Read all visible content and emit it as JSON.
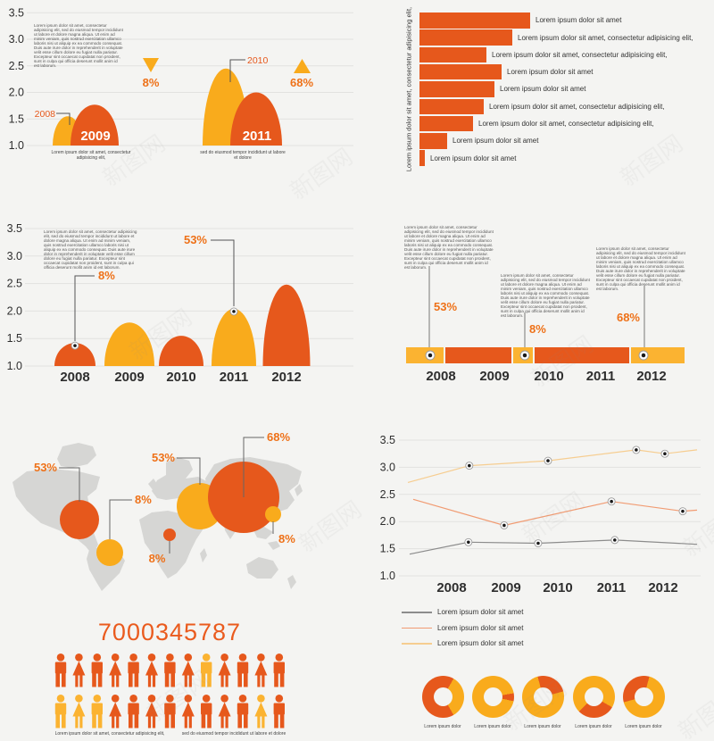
{
  "watermark": {
    "text": "新图网"
  },
  "colors": {
    "orange": "#E6581C",
    "yellow": "#F9AB1C",
    "yellow_bright": "#FBB331",
    "accent_text": "#EE7118",
    "salmon": "#F19B72",
    "gold": "#F6CD90",
    "gray_line": "#8C8C8C",
    "map_gray": "#D6D6D4",
    "number_orange": "#EA5B1E",
    "grid": "#E2E2E0",
    "dark_text": "#2E2E2E"
  },
  "lorem": {
    "paragraph": "Lorem ipsum dolor sit amet, consectetur adipisicing elit, sed do eiusmod tempor incididunt ut labore et dolore magna aliqua. Ut enim ad minim veniam, quis nostrud exercitation ullamco laboris nisi ut aliquip ex ea commodo consequat. Duis aute irure dolor in reprehenderit in voluptate velit esse cillum dolore eu fugiat nulla pariatur. Excepteur sint occaecat cupidatat non proident, sunt in culpa qui officia deserunt mollit anim id est laborum.",
    "caption_a": "Lorem ipsum dolor sit amet, consectetur adipisicing elit,",
    "caption_b": "sed do eiusmod tempor incididunt ut labore et dolore",
    "short_label": "Lorem ipsum dolor sit amet",
    "donut_caption": "Lorem ipsum dolor"
  },
  "chart_data": [
    {
      "id": "dome-pairs",
      "type": "area",
      "ylim": [
        1.0,
        3.5
      ],
      "y_ticks": [
        "3.5",
        "3.0",
        "2.5",
        "2.0",
        "1.5",
        "1.0"
      ],
      "domes": [
        {
          "year": "2008",
          "value": 1.55,
          "color": "yellow",
          "cx": 76,
          "w": 34,
          "callout": "2008"
        },
        {
          "year": "2009",
          "value": 1.77,
          "color": "orange",
          "cx": 106,
          "w": 54,
          "label": "2009"
        },
        {
          "year": "2010",
          "value": 2.45,
          "color": "yellow",
          "cx": 253,
          "w": 52,
          "callout": "2010"
        },
        {
          "year": "2011",
          "value": 2.0,
          "color": "orange",
          "cx": 287,
          "w": 58,
          "label": "2011"
        }
      ],
      "annotations": [
        {
          "shape": "triangle-down",
          "text": "8%"
        },
        {
          "shape": "triangle-up",
          "text": "68%"
        }
      ]
    },
    {
      "id": "hbar",
      "type": "bar",
      "orientation": "horizontal",
      "axis_label": "Lorem ipsum dolor sit amet, consectetur adipisicing elit,",
      "bars": [
        {
          "w": 124,
          "label": "Lorem ipsum dolor sit amet"
        },
        {
          "w": 104,
          "label": "Lorem ipsum dolor sit amet, consectetur adipisicing elit,"
        },
        {
          "w": 75,
          "label": "Lorem ipsum dolor sit amet, consectetur adipisicing elit,"
        },
        {
          "w": 92,
          "label": "Lorem ipsum dolor sit amet"
        },
        {
          "w": 84,
          "label": "Lorem ipsum dolor sit amet"
        },
        {
          "w": 72,
          "label": "Lorem ipsum dolor sit amet, consectetur adipisicing elit,"
        },
        {
          "w": 60,
          "label": "Lorem ipsum dolor sit amet, consectetur adipisicing elit,"
        },
        {
          "w": 31,
          "label": "Lorem ipsum dolor sit amet"
        },
        {
          "w": 6,
          "label": "Lorem ipsum dolor sit amet"
        }
      ]
    },
    {
      "id": "dome-row",
      "type": "area",
      "ylim": [
        1.0,
        3.5
      ],
      "y_ticks": [
        "3.5",
        "3.0",
        "2.5",
        "2.0",
        "1.5",
        "1.0"
      ],
      "categories": [
        "2008",
        "2009",
        "2010",
        "2011",
        "2012"
      ],
      "domes": [
        {
          "year": "2008",
          "value": 1.42,
          "color": "orange",
          "cx": 84,
          "w": 46,
          "pct": "8%"
        },
        {
          "year": "2009",
          "value": 1.79,
          "color": "yellow",
          "cx": 145,
          "w": 56
        },
        {
          "year": "2010",
          "value": 1.55,
          "color": "orange",
          "cx": 203,
          "w": 50
        },
        {
          "year": "2011",
          "value": 2.04,
          "color": "yellow",
          "cx": 262,
          "w": 50,
          "pct": "53%"
        },
        {
          "year": "2012",
          "value": 2.48,
          "color": "orange",
          "cx": 321,
          "w": 53
        }
      ]
    },
    {
      "id": "timeline",
      "type": "timeline",
      "categories": [
        "2008",
        "2009",
        "2010",
        "2011",
        "2012"
      ],
      "segments": [
        {
          "x": 55,
          "w": 42,
          "color": "yellow_bright",
          "marker": 82
        },
        {
          "x": 99,
          "w": 74,
          "color": "orange"
        },
        {
          "x": 175,
          "w": 22,
          "color": "yellow_bright",
          "marker": 188
        },
        {
          "x": 199,
          "w": 106,
          "color": "orange"
        },
        {
          "x": 307,
          "w": 60,
          "color": "yellow_bright",
          "marker": 321
        }
      ],
      "callouts": [
        {
          "pct": "53%",
          "x": 81,
          "line_top": 58,
          "text_x": 86,
          "text_y": 108,
          "anchor": "start"
        },
        {
          "pct": "8%",
          "x": 188,
          "line_top": 110,
          "text_x": 193,
          "text_y": 133,
          "anchor": "start"
        },
        {
          "pct": "68%",
          "x": 322,
          "line_top": 80,
          "text_x": 317,
          "text_y": 120,
          "anchor": "end"
        }
      ]
    },
    {
      "id": "bubble-map",
      "type": "bubble-map",
      "bubbles": [
        {
          "region": "north-america",
          "pct": "53%",
          "color": "orange",
          "cx": 89,
          "cy": 112,
          "r": 22,
          "line": "89,92 89,54 66,54",
          "tx": 64,
          "ty": 58,
          "anchor": "end"
        },
        {
          "region": "south-america",
          "pct": "8%",
          "color": "yellow",
          "cx": 123,
          "cy": 149,
          "r": 15,
          "line": "123,134 123,90 148,90",
          "tx": 151,
          "ty": 94,
          "anchor": "start"
        },
        {
          "region": "europe",
          "pct": "53%",
          "color": "yellow",
          "cx": 224,
          "cy": 97,
          "r": 26,
          "line": "224,73 224,43 198,43",
          "tx": 196,
          "ty": 47,
          "anchor": "end"
        },
        {
          "region": "africa",
          "pct": "8%",
          "color": "orange",
          "cx": 190,
          "cy": 129,
          "r": 7,
          "line": "190,136 190,150",
          "tx": 176,
          "ty": 160,
          "anchor": "middle"
        },
        {
          "region": "asia",
          "pct": "68%",
          "color": "orange",
          "cx": 273,
          "cy": 87,
          "r": 40,
          "line": "273,87 273,20 296,20",
          "tx": 299,
          "ty": 24,
          "anchor": "start"
        },
        {
          "region": "east-asia",
          "pct": "8%",
          "color": "yellow",
          "cx": 306,
          "cy": 106,
          "r": 9,
          "line": "306,114 306,128",
          "tx": 312,
          "ty": 138,
          "anchor": "start"
        }
      ]
    },
    {
      "id": "multi-line",
      "type": "line",
      "ylim": [
        1.0,
        3.5
      ],
      "y_ticks": [
        "3.5",
        "3.0",
        "2.5",
        "2.0",
        "1.5",
        "1.0"
      ],
      "x_ticks": [
        "2008",
        "2009",
        "2010",
        "2011",
        "2012"
      ],
      "legend_position": "bottom-left",
      "series": [
        {
          "name": "Lorem ipsum dolor sit amet",
          "color": "gray_line",
          "points": [
            [
              0.036,
              1.4,
              0
            ],
            [
              0.233,
              1.62,
              1
            ],
            [
              0.467,
              1.6,
              1
            ],
            [
              0.724,
              1.66,
              1
            ],
            [
              1,
              1.58,
              0
            ]
          ]
        },
        {
          "name": "Lorem ipsum dolor sit amet",
          "color": "salmon",
          "points": [
            [
              0.048,
              2.41,
              0
            ],
            [
              0.353,
              1.93,
              1
            ],
            [
              0.713,
              2.37,
              1
            ],
            [
              0.952,
              2.19,
              1
            ],
            [
              1,
              2.21,
              0
            ]
          ]
        },
        {
          "name": "Lorem ipsum dolor sit amet",
          "color": "gold",
          "points": [
            [
              0.03,
              2.72,
              0
            ],
            [
              0.236,
              3.03,
              1
            ],
            [
              0.5,
              3.12,
              1
            ],
            [
              0.796,
              3.32,
              1
            ],
            [
              0.892,
              3.25,
              1
            ],
            [
              1,
              3.32,
              0
            ]
          ]
        }
      ]
    },
    {
      "id": "pictograph",
      "type": "pictograph",
      "value": "7000345787",
      "rows": [
        [
          "m-o",
          "w-o",
          "m-o",
          "w-o",
          "m-o",
          "w-o",
          "m-o",
          "w-o",
          "m-y",
          "w-o",
          "m-o",
          "w-o",
          "m-o"
        ],
        [
          "m-y",
          "w-y",
          "m-y",
          "w-o",
          "m-o",
          "w-o",
          "m-o",
          "w-o",
          "m-o",
          "w-o",
          "m-o",
          "w-y",
          "m-o"
        ]
      ]
    },
    {
      "id": "donut-row",
      "type": "pie",
      "donuts": [
        {
          "segments": [
            [
              "orange",
              0,
              30
            ],
            [
              "yellow",
              30,
              150
            ],
            [
              "orange",
              150,
              360
            ]
          ]
        },
        {
          "segments": [
            [
              "yellow",
              0,
              80
            ],
            [
              "orange",
              80,
              102
            ],
            [
              "yellow",
              102,
              360
            ]
          ]
        },
        {
          "segments": [
            [
              "orange",
              0,
              75
            ],
            [
              "yellow",
              75,
              345
            ],
            [
              "orange",
              345,
              360
            ]
          ]
        },
        {
          "segments": [
            [
              "yellow",
              0,
              120
            ],
            [
              "orange",
              120,
              225
            ],
            [
              "yellow",
              225,
              360
            ]
          ]
        },
        {
          "segments": [
            [
              "orange",
              0,
              15
            ],
            [
              "yellow",
              15,
              255
            ],
            [
              "orange",
              255,
              360
            ]
          ]
        }
      ]
    }
  ]
}
